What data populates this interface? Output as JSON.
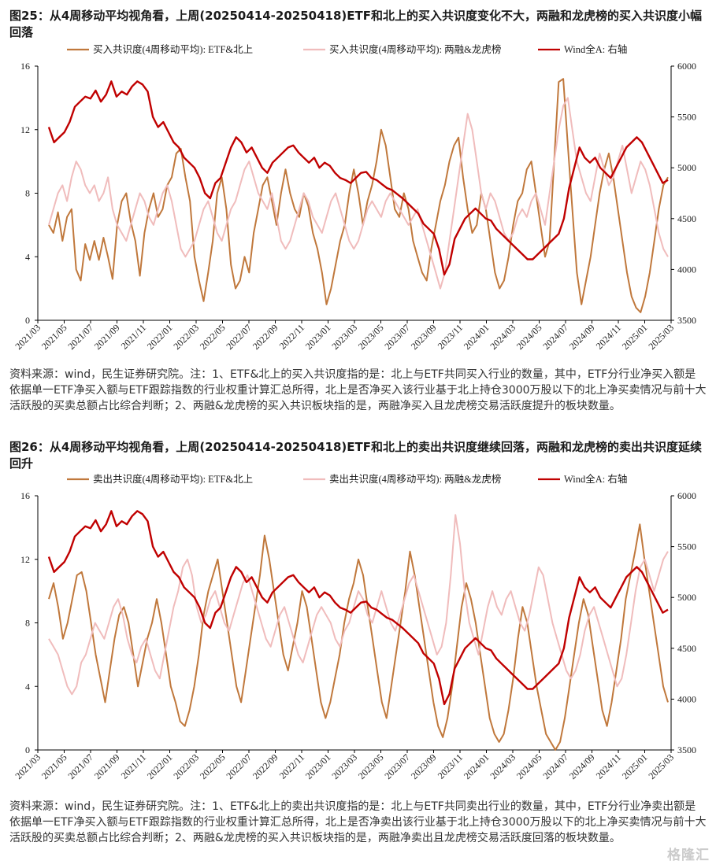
{
  "figure1": {
    "title": "图25：从4周移动平均视角看，上周(20250414-20250418)ETF和北上的买入共识度变化不大，两融和龙虎榜的买入共识度小幅回落",
    "note": "资料来源：wind，民生证券研究院。注：1、ETF&北上的买入共识度指的是：北上与ETF共同买入行业的数量，其中，ETF分行业净买入额是依据单一ETF净买入额与ETF跟踪指数的行业权重计算汇总所得，北上是否净买入该行业基于北上持仓3000万股以下的北上净买卖情况与前十大活跃股的买卖总额占比综合判断；2、两融&龙虎榜的买入共识板块指的是，两融净买入且龙虎榜交易活跃度提升的板块数量。"
  },
  "figure2": {
    "title": "图26：从4周移动平均视角看，上周(20250414-20250418)ETF和北上的卖出共识度继续回落，两融和龙虎榜的卖出共识度延续回升",
    "note": "资料来源：wind，民生证券研究院。注：1、ETF&北上的卖出共识度指的是：北上与ETF共同卖出行业的数量，其中，ETF分行业净卖出额是依据单一ETF净买入额与ETF跟踪指数的行业权重计算汇总所得，北上是否净卖出该行业基于北上持仓3000万股以下的北上净买卖情况与前十大活跃股的买卖总额占比综合判断；2、两融&龙虎榜的买入共识板块指的是，两融净卖出且龙虎榜交易活跃度回落的板块数量。"
  },
  "watermark": "格隆汇",
  "colors": {
    "etf": "#c0783c",
    "margin": "#f0bcbc",
    "wind": "#c00000",
    "axis": "#000000"
  },
  "chart_data": [
    {
      "type": "line",
      "legend": [
        "买入共识度(4周移动平均): ETF&北上",
        "买入共识度(4周移动平均): 两融&龙虎榜",
        "Wind全A: 右轴"
      ],
      "x_ticks": [
        "2021/03",
        "2021/05",
        "2021/07",
        "2021/09",
        "2021/11",
        "2022/01",
        "2022/03",
        "2022/05",
        "2022/07",
        "2022/09",
        "2022/11",
        "2023/01",
        "2023/03",
        "2023/05",
        "2023/07",
        "2023/09",
        "2023/11",
        "2024/01",
        "2024/03",
        "2024/05",
        "2024/07",
        "2024/09",
        "2024/11",
        "2025/01",
        "2025/03"
      ],
      "y_left": {
        "ticks": [
          0,
          4,
          8,
          12,
          16
        ],
        "range": [
          0,
          16
        ]
      },
      "y_right": {
        "ticks": [
          3500,
          4000,
          4500,
          5000,
          5500,
          6000
        ],
        "range": [
          3500,
          6000
        ]
      },
      "series": [
        {
          "name": "买入共识度(4周移动平均): ETF&北上",
          "axis": "left",
          "values": [
            6.0,
            5.5,
            6.8,
            5.0,
            6.5,
            7.0,
            3.2,
            2.5,
            4.8,
            3.8,
            5.0,
            3.8,
            5.2,
            4.0,
            2.6,
            6.0,
            7.5,
            8.0,
            6.2,
            5.0,
            2.8,
            5.5,
            7.0,
            8.0,
            6.5,
            7.0,
            8.5,
            9.0,
            10.5,
            10.8,
            9.0,
            7.5,
            4.0,
            2.5,
            1.2,
            3.0,
            5.0,
            8.0,
            9.0,
            7.0,
            3.5,
            2.0,
            2.5,
            4.0,
            3.0,
            5.5,
            7.0,
            8.5,
            9.0,
            7.5,
            6.0,
            8.0,
            9.5,
            8.0,
            7.0,
            6.5,
            8.0,
            7.2,
            5.5,
            4.5,
            3.0,
            1.0,
            2.0,
            3.5,
            5.0,
            6.0,
            8.0,
            9.5,
            8.0,
            6.0,
            7.5,
            8.5,
            10.0,
            12.0,
            11.0,
            9.0,
            7.0,
            6.5,
            8.0,
            7.0,
            5.0,
            4.0,
            3.0,
            2.5,
            4.5,
            6.0,
            7.5,
            8.5,
            10.0,
            11.0,
            11.5,
            9.0,
            7.0,
            5.5,
            6.0,
            8.0,
            7.0,
            5.0,
            3.0,
            2.0,
            2.5,
            4.0,
            6.0,
            7.5,
            8.0,
            9.5,
            10.0,
            8.0,
            6.0,
            4.0,
            5.0,
            10.0,
            15.0,
            15.2,
            11.0,
            7.0,
            3.0,
            1.0,
            2.5,
            4.0,
            6.0,
            8.0,
            9.5,
            10.5,
            9.0,
            7.0,
            5.0,
            3.0,
            1.5,
            0.8,
            0.5,
            1.5,
            3.0,
            5.0,
            7.0,
            8.5,
            9.0
          ]
        },
        {
          "name": "买入共识度(4周移动平均): 两融&龙虎榜",
          "axis": "left",
          "values": [
            6.0,
            7.0,
            8.0,
            8.5,
            7.5,
            9.0,
            10.0,
            9.5,
            8.5,
            8.0,
            8.5,
            7.5,
            8.0,
            9.0,
            7.0,
            6.0,
            5.5,
            5.0,
            6.0,
            7.0,
            8.0,
            7.5,
            6.5,
            6.0,
            7.0,
            8.0,
            8.5,
            7.5,
            6.0,
            4.5,
            4.0,
            4.5,
            5.0,
            6.0,
            7.0,
            7.5,
            6.5,
            5.5,
            5.0,
            6.0,
            7.0,
            7.5,
            8.5,
            9.5,
            10.0,
            9.0,
            8.0,
            7.5,
            7.0,
            8.0,
            6.5,
            5.0,
            4.5,
            5.0,
            6.0,
            7.0,
            8.0,
            7.5,
            6.5,
            6.0,
            5.5,
            6.5,
            7.5,
            8.0,
            7.0,
            6.0,
            5.0,
            4.5,
            5.0,
            6.0,
            7.0,
            7.5,
            7.0,
            6.5,
            7.5,
            8.0,
            7.5,
            7.0,
            6.5,
            6.0,
            6.5,
            7.0,
            6.0,
            5.0,
            4.0,
            3.0,
            2.0,
            3.0,
            5.0,
            7.0,
            9.0,
            11.0,
            13.0,
            12.0,
            10.0,
            8.0,
            7.0,
            8.0,
            7.5,
            6.5,
            5.5,
            5.0,
            5.5,
            6.5,
            7.0,
            6.5,
            7.5,
            8.0,
            7.0,
            6.0,
            8.0,
            10.0,
            12.0,
            13.5,
            14.0,
            12.0,
            10.0,
            9.0,
            8.0,
            7.5,
            9.0,
            10.5,
            9.5,
            8.5,
            9.0,
            10.0,
            11.0,
            9.5,
            8.0,
            9.0,
            10.0,
            9.5,
            8.5,
            7.0,
            5.5,
            4.5,
            4.0
          ]
        },
        {
          "name": "Wind全A: 右轴",
          "axis": "right",
          "values": [
            5400,
            5250,
            5300,
            5350,
            5450,
            5600,
            5650,
            5700,
            5680,
            5760,
            5650,
            5720,
            5850,
            5700,
            5750,
            5720,
            5800,
            5850,
            5820,
            5750,
            5500,
            5400,
            5450,
            5350,
            5250,
            5200,
            5100,
            5050,
            5000,
            4900,
            4750,
            4700,
            4850,
            4900,
            5050,
            5200,
            5300,
            5250,
            5150,
            5200,
            5100,
            5000,
            4950,
            5050,
            5100,
            5150,
            5200,
            5220,
            5150,
            5100,
            5050,
            5100,
            5000,
            5050,
            5020,
            4950,
            4900,
            4880,
            4850,
            4900,
            4950,
            4960,
            4900,
            4880,
            4840,
            4800,
            4780,
            4740,
            4700,
            4650,
            4600,
            4550,
            4450,
            4400,
            4350,
            4200,
            3950,
            4050,
            4300,
            4400,
            4500,
            4550,
            4600,
            4550,
            4500,
            4480,
            4400,
            4350,
            4300,
            4250,
            4200,
            4150,
            4100,
            4100,
            4150,
            4200,
            4250,
            4300,
            4350,
            4500,
            4800,
            5000,
            5200,
            5100,
            5050,
            5100,
            5000,
            4950,
            4900,
            5000,
            5100,
            5200,
            5250,
            5300,
            5250,
            5150,
            5050,
            4950,
            4850,
            4880
          ]
        }
      ]
    },
    {
      "type": "line",
      "legend": [
        "卖出共识度(4周移动平均): ETF&北上",
        "卖出共识度(4周移动平均): 两融&龙虎榜",
        "Wind全A: 右轴"
      ],
      "x_ticks": [
        "2021/03",
        "2021/05",
        "2021/07",
        "2021/09",
        "2021/11",
        "2022/01",
        "2022/03",
        "2022/05",
        "2022/07",
        "2022/09",
        "2022/11",
        "2023/01",
        "2023/03",
        "2023/05",
        "2023/07",
        "2023/09",
        "2023/11",
        "2024/01",
        "2024/03",
        "2024/05",
        "2024/07",
        "2024/09",
        "2024/11",
        "2025/01",
        "2025/03"
      ],
      "y_left": {
        "ticks": [
          0,
          4,
          8,
          12,
          16
        ],
        "range": [
          0,
          16
        ]
      },
      "y_right": {
        "ticks": [
          3500,
          4000,
          4500,
          5000,
          5500,
          6000
        ],
        "range": [
          3500,
          6000
        ]
      },
      "series": [
        {
          "name": "卖出共识度(4周移动平均): ETF&北上",
          "axis": "left",
          "values": [
            9.5,
            10.5,
            9.0,
            7.0,
            8.0,
            9.5,
            11.0,
            11.2,
            10.0,
            8.0,
            6.0,
            4.5,
            3.0,
            5.0,
            7.0,
            8.5,
            9.0,
            8.0,
            6.0,
            4.0,
            5.5,
            7.0,
            8.0,
            9.5,
            8.0,
            6.0,
            4.0,
            3.0,
            1.8,
            1.5,
            2.5,
            4.0,
            6.0,
            8.5,
            10.0,
            11.0,
            12.0,
            10.0,
            8.0,
            6.0,
            4.0,
            3.0,
            5.0,
            7.0,
            9.0,
            11.0,
            13.5,
            12.0,
            10.0,
            8.0,
            6.0,
            5.0,
            6.5,
            8.0,
            10.0,
            9.0,
            7.0,
            5.0,
            3.0,
            2.0,
            3.0,
            4.5,
            6.0,
            8.0,
            9.5,
            10.5,
            12.0,
            11.0,
            9.0,
            7.0,
            5.0,
            3.0,
            2.0,
            4.0,
            6.0,
            8.0,
            10.0,
            12.5,
            11.0,
            9.0,
            7.0,
            5.0,
            3.0,
            1.5,
            0.8,
            2.0,
            4.0,
            6.5,
            9.0,
            10.5,
            9.5,
            8.0,
            6.0,
            4.0,
            2.0,
            1.0,
            0.5,
            1.0,
            2.5,
            4.5,
            7.0,
            9.0,
            8.0,
            6.0,
            4.0,
            2.5,
            1.0,
            0.5,
            0.0,
            0.5,
            2.0,
            4.0,
            6.0,
            8.0,
            9.5,
            8.5,
            6.5,
            4.5,
            2.5,
            1.5,
            3.0,
            5.0,
            7.0,
            9.5,
            11.0,
            12.5,
            14.2,
            12.0,
            10.0,
            8.0,
            6.0,
            4.0,
            3.0
          ]
        },
        {
          "name": "卖出共识度(4周移动平均): 两融&龙虎榜",
          "axis": "left",
          "values": [
            7.0,
            6.5,
            6.0,
            5.0,
            4.0,
            3.5,
            4.0,
            5.5,
            6.0,
            7.0,
            8.0,
            7.5,
            7.0,
            8.0,
            9.0,
            9.5,
            8.5,
            7.0,
            6.0,
            5.5,
            6.5,
            7.0,
            6.0,
            5.0,
            4.5,
            6.0,
            7.5,
            9.0,
            10.0,
            11.5,
            12.0,
            11.0,
            9.0,
            8.0,
            8.5,
            9.5,
            10.0,
            9.0,
            8.0,
            7.5,
            8.5,
            9.5,
            10.5,
            11.0,
            10.0,
            9.0,
            8.0,
            7.0,
            6.5,
            7.5,
            8.5,
            9.0,
            8.0,
            7.0,
            6.0,
            5.5,
            6.5,
            7.5,
            8.5,
            9.0,
            8.5,
            8.0,
            7.0,
            6.5,
            7.5,
            8.0,
            9.0,
            10.0,
            9.5,
            8.5,
            8.0,
            9.0,
            10.0,
            9.0,
            8.0,
            7.5,
            8.5,
            9.5,
            10.5,
            11.0,
            10.0,
            9.0,
            8.0,
            7.0,
            6.0,
            6.5,
            8.0,
            11.0,
            14.8,
            13.0,
            10.0,
            8.0,
            7.0,
            6.0,
            7.5,
            9.0,
            10.0,
            9.0,
            8.5,
            9.5,
            10.0,
            9.0,
            8.0,
            7.5,
            8.5,
            10.0,
            11.5,
            11.0,
            9.5,
            8.0,
            7.0,
            6.0,
            5.0,
            4.5,
            5.0,
            6.0,
            7.5,
            8.5,
            9.0,
            8.0,
            7.0,
            6.0,
            5.0,
            4.0,
            4.5,
            6.0,
            8.0,
            10.0,
            11.5,
            12.0,
            11.0,
            10.0,
            11.0,
            12.0,
            12.5
          ]
        },
        {
          "name": "Wind全A: 右轴",
          "axis": "right",
          "values": [
            5400,
            5250,
            5300,
            5350,
            5450,
            5600,
            5650,
            5700,
            5680,
            5760,
            5650,
            5720,
            5850,
            5700,
            5750,
            5720,
            5800,
            5850,
            5820,
            5750,
            5500,
            5400,
            5450,
            5350,
            5250,
            5200,
            5100,
            5050,
            5000,
            4900,
            4750,
            4700,
            4850,
            4900,
            5050,
            5200,
            5300,
            5250,
            5150,
            5200,
            5100,
            5000,
            4950,
            5050,
            5100,
            5150,
            5200,
            5220,
            5150,
            5100,
            5050,
            5100,
            5000,
            5050,
            5020,
            4950,
            4900,
            4880,
            4850,
            4900,
            4950,
            4960,
            4900,
            4880,
            4840,
            4800,
            4780,
            4740,
            4700,
            4650,
            4600,
            4550,
            4450,
            4400,
            4350,
            4200,
            3950,
            4050,
            4300,
            4400,
            4500,
            4550,
            4600,
            4550,
            4500,
            4480,
            4400,
            4350,
            4300,
            4250,
            4200,
            4150,
            4100,
            4100,
            4150,
            4200,
            4250,
            4300,
            4350,
            4500,
            4800,
            5000,
            5200,
            5100,
            5050,
            5100,
            5000,
            4950,
            4900,
            5000,
            5100,
            5200,
            5250,
            5300,
            5250,
            5150,
            5050,
            4950,
            4850,
            4880
          ]
        }
      ]
    }
  ]
}
